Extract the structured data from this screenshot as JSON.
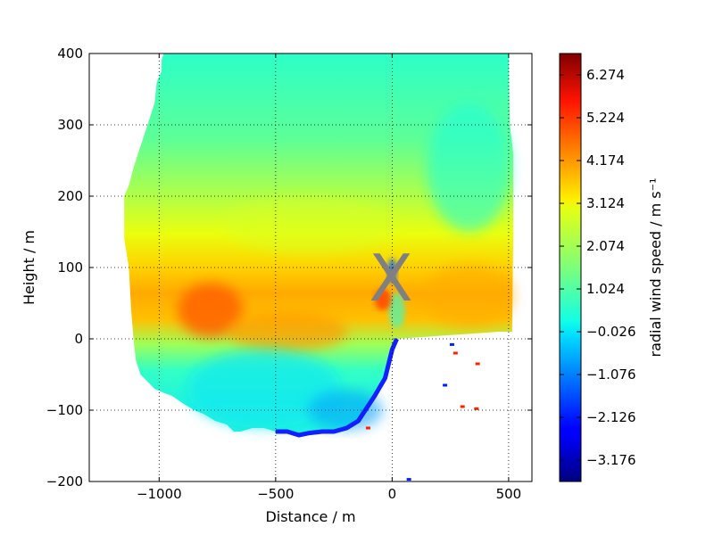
{
  "chart_data": {
    "type": "heatmap",
    "title": "",
    "xlabel": "Distance / m",
    "ylabel": "Height / m",
    "xlim": [
      -1300,
      600
    ],
    "ylim": [
      -200,
      400
    ],
    "xticks": [
      -1000,
      -500,
      0,
      500
    ],
    "yticks": [
      -200,
      -100,
      0,
      100,
      200,
      300,
      400
    ],
    "xtick_labels": [
      "−1000",
      "−500",
      "0",
      "500"
    ],
    "ytick_labels": [
      "−200",
      "−100",
      "0",
      "100",
      "200",
      "300",
      "400"
    ],
    "grid": true,
    "marker": {
      "label": "X",
      "x": -5,
      "y": 85,
      "color": "#808080"
    },
    "colorbar": {
      "label": "radial wind speed / m s⁻¹",
      "min": -3.7,
      "max": 6.8,
      "ticks": [
        6.274,
        5.224,
        4.174,
        3.124,
        2.074,
        1.024,
        -0.026,
        -1.076,
        -2.126,
        -3.176
      ],
      "tick_labels": [
        "6.274",
        "5.224",
        "4.174",
        "3.124",
        "2.074",
        "1.024",
        "−0.026",
        "−1.076",
        "−2.126",
        "−3.176"
      ],
      "colormap": "jet"
    },
    "field": {
      "outline_upper": [
        [
          -1150,
          200
        ],
        [
          -1130,
          215
        ],
        [
          -1110,
          240
        ],
        [
          -1080,
          270
        ],
        [
          -1060,
          290
        ],
        [
          -1040,
          310
        ],
        [
          -1020,
          330
        ],
        [
          -1010,
          360
        ],
        [
          -990,
          375
        ],
        [
          -990,
          390
        ],
        [
          -980,
          400
        ],
        [
          -100,
          400
        ],
        [
          100,
          400
        ],
        [
          500,
          400
        ],
        [
          505,
          300
        ],
        [
          520,
          260
        ],
        [
          520,
          150
        ]
      ],
      "outline_lower": [
        [
          520,
          150
        ],
        [
          515,
          10
        ],
        [
          460,
          10
        ],
        [
          20,
          0
        ],
        [
          0,
          -15
        ],
        [
          -30,
          -55
        ],
        [
          -75,
          -80
        ],
        [
          -115,
          -100
        ],
        [
          -145,
          -115
        ],
        [
          -195,
          -125
        ],
        [
          -250,
          -130
        ],
        [
          -300,
          -130
        ],
        [
          -355,
          -132
        ],
        [
          -400,
          -135
        ],
        [
          -450,
          -130
        ],
        [
          -500,
          -130
        ],
        [
          -550,
          -125
        ],
        [
          -600,
          -125
        ],
        [
          -650,
          -130
        ],
        [
          -680,
          -130
        ],
        [
          -710,
          -120
        ],
        [
          -760,
          -115
        ],
        [
          -810,
          -105
        ],
        [
          -850,
          -100
        ],
        [
          -900,
          -90
        ],
        [
          -945,
          -80
        ],
        [
          -985,
          -75
        ],
        [
          -1020,
          -70
        ],
        [
          -1050,
          -60
        ],
        [
          -1080,
          -50
        ],
        [
          -1100,
          -30
        ],
        [
          -1110,
          0
        ],
        [
          -1120,
          40
        ],
        [
          -1130,
          100
        ],
        [
          -1150,
          140
        ],
        [
          -1150,
          200
        ]
      ],
      "summary": "jet-coloured radial wind speed field; mostly 1 to 2 m/s aloft, 3 to 5.5 m/s jet band near 0 to 100 m, negative values along lower boundary"
    }
  }
}
